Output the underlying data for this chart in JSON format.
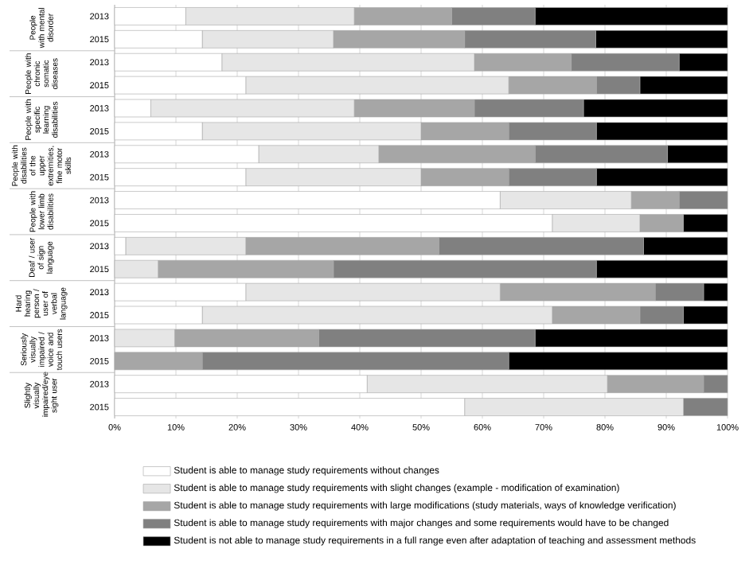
{
  "chart_data": {
    "type": "bar",
    "orientation": "horizontal",
    "stacked": true,
    "categories": [
      "2013",
      "2015",
      "2013",
      "2015",
      "2013",
      "2015",
      "2013",
      "2015",
      "2013",
      "2015",
      "2013",
      "2015",
      "2013",
      "2015",
      "2013",
      "2015",
      "2013",
      "2015"
    ],
    "series": [
      {
        "name": "Student is able to manage study requirements without changes",
        "color": "#ffffff",
        "values": [
          11.6,
          14.3,
          17.5,
          21.4,
          5.9,
          14.3,
          23.5,
          21.4,
          62.9,
          71.4,
          1.8,
          0,
          21.4,
          14.3,
          0,
          0,
          41.2,
          57.1
        ]
      },
      {
        "name": "Student is able to manage study requirements with slight changes (example - modification of examination)",
        "color": "#e6e6e6",
        "values": [
          27.5,
          21.4,
          41.2,
          42.9,
          33.2,
          35.7,
          19.6,
          28.6,
          21.4,
          14.3,
          19.6,
          7.1,
          41.5,
          57.1,
          9.8,
          0,
          39.2,
          35.7
        ]
      },
      {
        "name": "Student is able to manage study requirements with large modifications (study materials, ways of  knowledge verification)",
        "color": "#a6a6a6",
        "values": [
          15.9,
          21.4,
          15.8,
          14.3,
          19.6,
          14.3,
          25.5,
          14.3,
          7.8,
          7.1,
          31.5,
          28.6,
          25.3,
          14.3,
          23.5,
          14.3,
          15.7,
          0
        ]
      },
      {
        "name": "Student is able to manage study requirements with major changes and some requirements would have to be changed",
        "color": "#808080",
        "values": [
          13.6,
          21.4,
          17.6,
          7.1,
          17.8,
          14.3,
          21.6,
          14.3,
          7.9,
          0,
          33.4,
          42.9,
          7.9,
          7.1,
          35.3,
          50,
          3.9,
          7.2
        ]
      },
      {
        "name": "Student is not able to manage study requirements in a full range even after adaptation of teaching and assessment methods",
        "color": "#000000",
        "values": [
          31.4,
          21.5,
          7.9,
          14.3,
          23.5,
          21.4,
          9.8,
          21.4,
          0,
          7.2,
          13.7,
          21.4,
          3.9,
          7.2,
          31.4,
          35.7,
          0,
          0
        ]
      }
    ],
    "xlim": [
      0,
      100
    ],
    "xticks": [
      {
        "value": 0,
        "label": "0%"
      },
      {
        "value": 10,
        "label": "10%"
      },
      {
        "value": 20,
        "label": "20%"
      },
      {
        "value": 30,
        "label": "30%"
      },
      {
        "value": 40,
        "label": "40%"
      },
      {
        "value": 50,
        "label": "50%"
      },
      {
        "value": 60,
        "label": "60%"
      },
      {
        "value": 70,
        "label": "70%"
      },
      {
        "value": 80,
        "label": "80%"
      },
      {
        "value": 90,
        "label": "90%"
      },
      {
        "value": 100,
        "label": "100%"
      }
    ],
    "grid": "x",
    "legend": "bottom",
    "annotations": [
      "People with mental disorder",
      "People with chronic somatic diseases",
      "People with specific learning disabilities",
      "People with disabilities of the upper extremities, fine motor skills",
      "People with lower limb disabilities",
      "Deaf / user of sign language",
      "Hard hearing person / user of verbal language",
      "Seriously visually impaired / voice and touch users",
      "Slightly visually impaired/eye sight user"
    ]
  }
}
